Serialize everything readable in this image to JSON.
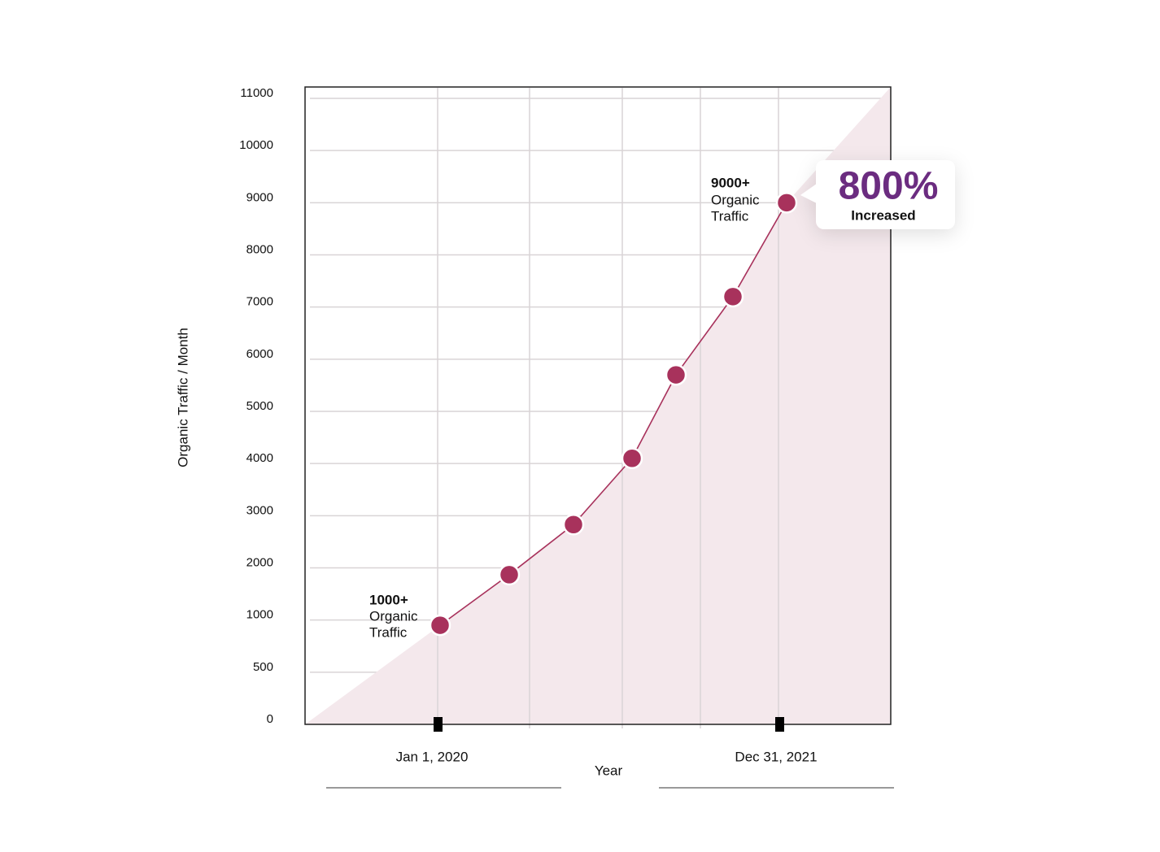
{
  "chart_data": {
    "type": "line",
    "ylabel": "Organic Traffic / Month",
    "xlabel": "Year",
    "x_labels": [
      "Jan 1, 2020",
      "Dec 31, 2021"
    ],
    "ylim": [
      0,
      11000
    ],
    "yticks": [
      0,
      500,
      1000,
      2000,
      3000,
      4000,
      5000,
      6000,
      7000,
      8000,
      9000,
      10000,
      11000
    ],
    "grid": true,
    "series": [
      {
        "name": "Organic Traffic",
        "color": "#a8325c",
        "values": [
          950,
          1870,
          2830,
          4100,
          5700,
          7200,
          9000
        ]
      }
    ],
    "annotations": [
      {
        "value": "1000+",
        "lines": [
          "Organic",
          "Traffic"
        ]
      },
      {
        "value": "9000+",
        "lines": [
          "Organic",
          "Traffic"
        ]
      }
    ],
    "callout": {
      "value": "800%",
      "label": "Increased"
    }
  }
}
